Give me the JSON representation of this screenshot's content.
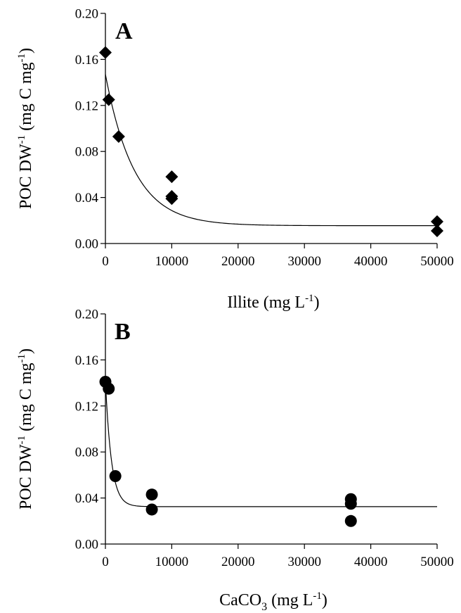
{
  "chart_data": [
    {
      "type": "scatter",
      "panel_label": "A",
      "ylabel_parts": {
        "main": "POC DW",
        "sup1": "-1",
        "mid": " (mg C mg",
        "sup2": "-1",
        "end": ")"
      },
      "xlabel_parts": {
        "main": "Illite (mg L",
        "sup": "-1",
        "end": ")"
      },
      "xlim": [
        0,
        50000
      ],
      "ylim": [
        0,
        0.2
      ],
      "x_ticks": [
        "0",
        "10000",
        "20000",
        "30000",
        "40000",
        "50000"
      ],
      "y_ticks": [
        "0.00",
        "0.04",
        "0.08",
        "0.12",
        "0.16",
        "0.20"
      ],
      "marker": "diamond",
      "points": [
        {
          "x": 0,
          "y": 0.166
        },
        {
          "x": 500,
          "y": 0.125
        },
        {
          "x": 2000,
          "y": 0.093
        },
        {
          "x": 10000,
          "y": 0.058
        },
        {
          "x": 10000,
          "y": 0.041
        },
        {
          "x": 10000,
          "y": 0.039
        },
        {
          "x": 50000,
          "y": 0.019
        },
        {
          "x": 50000,
          "y": 0.011
        }
      ],
      "fit": {
        "model": "exponential decay",
        "y0": 0.147,
        "plateau": 0.0155,
        "rate_per_unit": 0.00023
      }
    },
    {
      "type": "scatter",
      "panel_label": "B",
      "ylabel_parts": {
        "main": "POC DW",
        "sup1": "-1",
        "mid": " (mg C mg",
        "sup2": "-1",
        "end": ")"
      },
      "xlabel_parts": {
        "main": "CaCO",
        "sub": "3",
        "rest": " (mg L",
        "sup": "-1",
        "end": ")"
      },
      "xlim": [
        0,
        50000
      ],
      "ylim": [
        0,
        0.2
      ],
      "x_ticks": [
        "0",
        "10000",
        "20000",
        "30000",
        "40000",
        "50000"
      ],
      "y_ticks": [
        "0.00",
        "0.04",
        "0.08",
        "0.12",
        "0.16",
        "0.20"
      ],
      "marker": "circle",
      "points": [
        {
          "x": 0,
          "y": 0.141
        },
        {
          "x": 500,
          "y": 0.135
        },
        {
          "x": 1500,
          "y": 0.059
        },
        {
          "x": 7000,
          "y": 0.043
        },
        {
          "x": 7000,
          "y": 0.03
        },
        {
          "x": 37000,
          "y": 0.039
        },
        {
          "x": 37000,
          "y": 0.035
        },
        {
          "x": 37000,
          "y": 0.02
        }
      ],
      "fit": {
        "model": "exponential decay",
        "y0": 0.142,
        "plateau": 0.0325,
        "rate_per_unit": 0.0011
      }
    }
  ]
}
